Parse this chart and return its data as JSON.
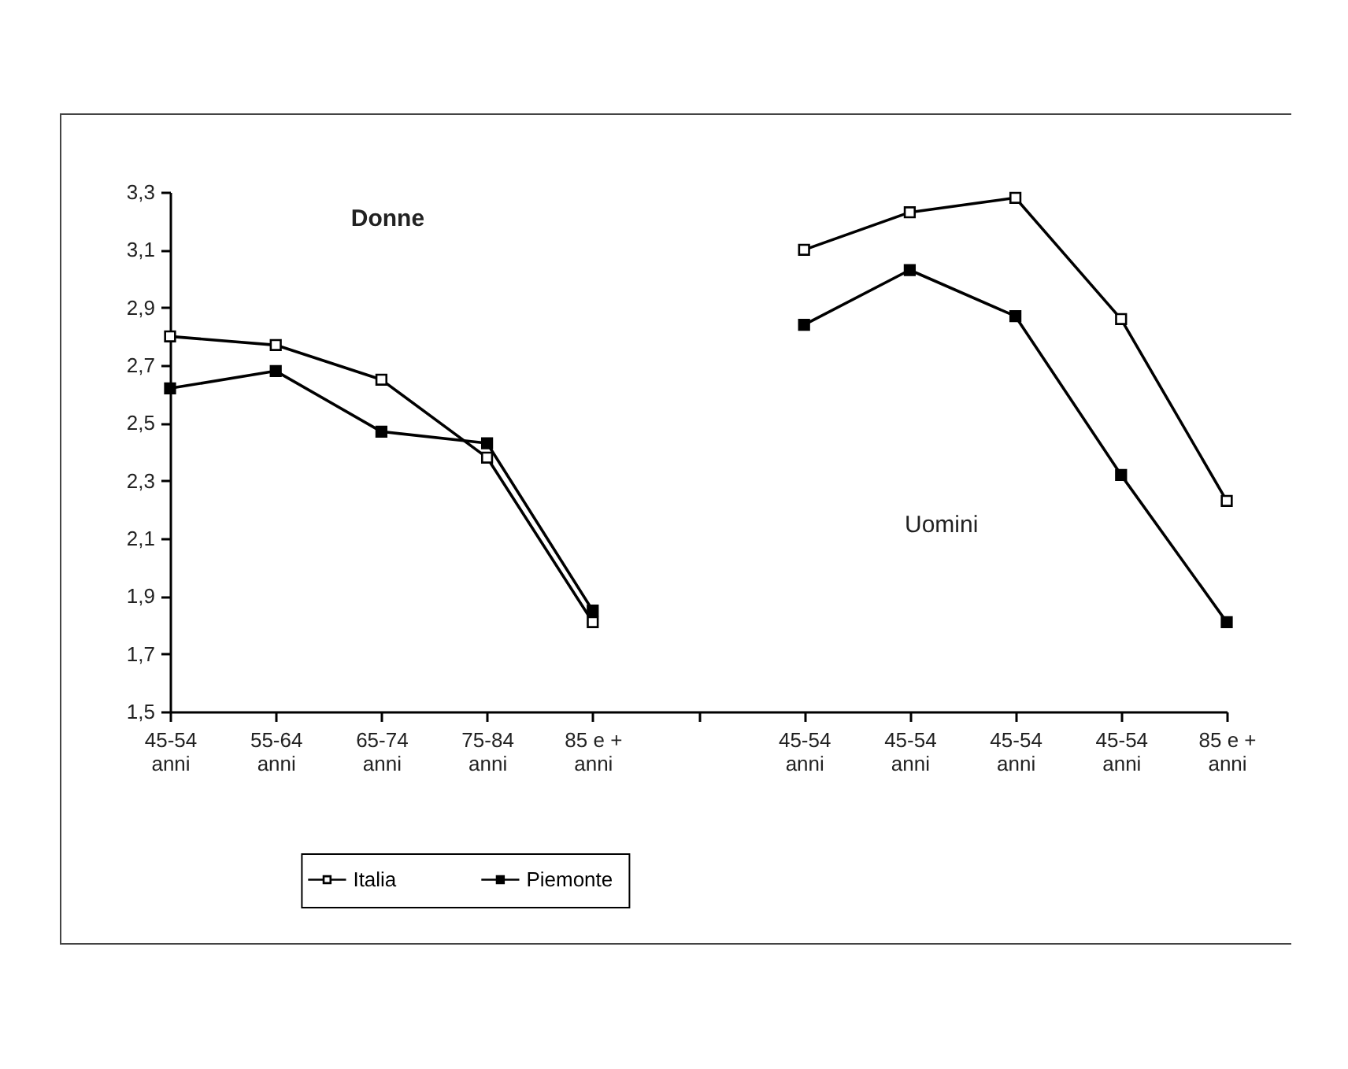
{
  "chart_data": {
    "type": "line",
    "categories": [
      "45-54 anni",
      "55-64 anni",
      "65-74 anni",
      "75-84 anni",
      "85 e + anni",
      null,
      "45-54 anni",
      "45-54 anni",
      "45-54 anni",
      "45-54 anni",
      "85 e + anni"
    ],
    "series": [
      {
        "name": "Italia",
        "color": "#000000",
        "values": [
          2.8,
          2.77,
          2.65,
          2.38,
          1.81,
          null,
          3.1,
          3.23,
          3.28,
          2.86,
          2.23
        ]
      },
      {
        "name": "Piemonte",
        "color": "#000000",
        "values": [
          2.62,
          2.68,
          2.47,
          2.43,
          1.85,
          null,
          2.84,
          3.03,
          2.87,
          2.32,
          1.81
        ]
      }
    ],
    "ylim": [
      1.5,
      3.3
    ],
    "yticks": [
      {
        "value": 1.5,
        "label": "1,5"
      },
      {
        "value": 1.7,
        "label": "1,7"
      },
      {
        "value": 1.9,
        "label": "1,9"
      },
      {
        "value": 2.1,
        "label": "2,1"
      },
      {
        "value": 2.3,
        "label": "2,3"
      },
      {
        "value": 2.5,
        "label": "2,5"
      },
      {
        "value": 2.7,
        "label": "2,7"
      },
      {
        "value": 2.9,
        "label": "2,9"
      },
      {
        "value": 3.1,
        "label": "3,1"
      },
      {
        "value": 3.3,
        "label": "3,3"
      }
    ],
    "annotations": [
      "Donne",
      "Uomini"
    ],
    "marker": "square",
    "line_style": "solid",
    "grid": false,
    "legend": "bottom"
  }
}
